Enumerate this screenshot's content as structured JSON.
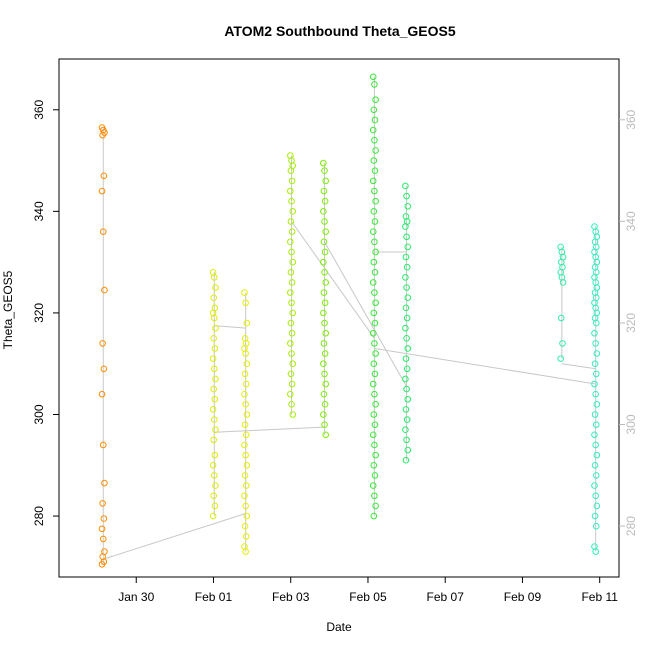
{
  "chart_data": {
    "type": "scatter",
    "title": "ATOM2 Southbound Theta_GEOS5",
    "xlabel": "Date",
    "ylabel": "Theta_GEOS5",
    "x_axis": "date",
    "xlim": [
      "2017-01-28T00:00",
      "2017-02-11T12:00"
    ],
    "ylim": [
      268,
      370
    ],
    "x_ticks": [
      {
        "value": "2017-01-30T00:00",
        "label": "Jan 30"
      },
      {
        "value": "2017-02-01T00:00",
        "label": "Feb 01"
      },
      {
        "value": "2017-02-03T00:00",
        "label": "Feb 03"
      },
      {
        "value": "2017-02-05T00:00",
        "label": "Feb 05"
      },
      {
        "value": "2017-02-07T00:00",
        "label": "Feb 07"
      },
      {
        "value": "2017-02-09T00:00",
        "label": "Feb 09"
      },
      {
        "value": "2017-02-11T00:00",
        "label": "Feb 11"
      }
    ],
    "y_ticks": [
      280,
      300,
      320,
      340,
      360
    ],
    "y_ticks_right": [
      280,
      300,
      320,
      340,
      360
    ],
    "grid": false,
    "connector_line_color": "#c8c8c8",
    "legend": "none",
    "note_profiles": "each profile is a vertical column of sampled theta values at nearly constant time",
    "profiles": [
      {
        "time": "2017-01-29T03:30",
        "color": "#FF8C00",
        "values": [
          356.5,
          356,
          355.5,
          355,
          347,
          344,
          336,
          324.5,
          314,
          309,
          304,
          294,
          286.5,
          282.5,
          279.5,
          277.5,
          275.5,
          273,
          272,
          271,
          270.5
        ]
      },
      {
        "time": "2017-02-01T00:30",
        "color": "#DDEE00",
        "values": [
          328,
          327,
          325,
          323,
          321,
          320,
          319,
          317,
          315,
          313,
          311,
          309,
          307,
          305,
          303,
          301,
          299,
          297,
          295,
          292,
          290,
          288,
          286,
          284,
          282,
          280
        ]
      },
      {
        "time": "2017-02-01T20:00",
        "color": "#E5F000",
        "values": [
          324,
          322,
          318,
          315,
          314,
          313,
          312,
          310,
          308,
          306,
          304,
          302,
          300,
          298,
          296,
          294,
          292,
          290,
          288,
          286,
          284,
          282,
          280,
          278,
          276,
          274,
          273
        ]
      },
      {
        "time": "2017-02-03T00:30",
        "color": "#A8F000",
        "values": [
          351,
          350,
          349,
          348,
          346,
          344,
          342,
          340,
          338,
          336,
          334,
          332,
          330,
          328,
          326,
          324,
          322,
          320,
          318,
          316,
          314,
          312,
          310,
          308,
          306,
          304,
          302,
          300
        ]
      },
      {
        "time": "2017-02-03T21:00",
        "color": "#7CF200",
        "values": [
          349.5,
          348,
          346,
          344,
          342,
          340,
          338,
          336,
          334,
          332,
          330,
          328,
          326,
          324,
          322,
          320,
          318,
          316,
          314,
          312,
          310,
          308,
          306,
          304,
          302,
          300,
          298,
          296
        ]
      },
      {
        "time": "2017-02-05T04:00",
        "color": "#33EE33",
        "values": [
          366.5,
          365,
          362,
          360,
          358,
          356,
          354,
          352,
          350,
          348,
          346,
          344,
          342,
          340,
          338,
          336,
          334,
          332,
          330,
          328,
          326,
          324,
          322,
          320,
          318,
          316,
          314,
          312,
          310,
          308,
          306,
          304,
          302,
          300,
          298,
          296,
          294,
          292,
          290,
          288,
          286,
          284,
          282,
          280
        ]
      },
      {
        "time": "2017-02-06T00:00",
        "color": "#22EE66",
        "values": [
          345,
          343,
          341,
          339,
          338,
          337,
          335,
          333,
          331,
          329,
          327,
          325,
          323,
          321,
          319,
          317,
          315,
          313,
          311,
          309,
          307,
          305,
          303,
          301,
          299,
          297,
          295,
          293,
          291
        ]
      },
      {
        "time": "2017-02-10T00:30",
        "color": "#33EEAA",
        "values": [
          333,
          332,
          331,
          330,
          329,
          328,
          327,
          326,
          319,
          314,
          311
        ]
      },
      {
        "time": "2017-02-10T21:30",
        "color": "#2EF0C0",
        "values": [
          337,
          336,
          335,
          334,
          333,
          332,
          331,
          330,
          329,
          328,
          327,
          326,
          325,
          324,
          323,
          322,
          321,
          320,
          319,
          318,
          316,
          314,
          312,
          310,
          308,
          306,
          304,
          302,
          300,
          298,
          296,
          294,
          292,
          290,
          288,
          286,
          284,
          282,
          280,
          278,
          274,
          273
        ]
      }
    ],
    "connections": [
      {
        "from": [
          "2017-01-29T03:30",
          271.5
        ],
        "to": [
          "2017-02-01T20:00",
          280.5
        ]
      },
      {
        "from": [
          "2017-02-01T00:30",
          296.5
        ],
        "to": [
          "2017-02-03T21:00",
          297.5
        ]
      },
      {
        "from": [
          "2017-02-01T00:30",
          317.5
        ],
        "to": [
          "2017-02-01T20:00",
          317
        ]
      },
      {
        "from": [
          "2017-02-03T00:30",
          338
        ],
        "to": [
          "2017-02-05T04:00",
          315
        ]
      },
      {
        "from": [
          "2017-02-03T21:00",
          303.5
        ],
        "to": [
          "2017-02-03T21:00",
          303.5
        ]
      },
      {
        "from": [
          "2017-02-03T21:00",
          334
        ],
        "to": [
          "2017-02-06T00:00",
          305.5
        ]
      },
      {
        "from": [
          "2017-02-05T04:00",
          332
        ],
        "to": [
          "2017-02-06T00:00",
          332
        ]
      },
      {
        "from": [
          "2017-02-05T04:00",
          313
        ],
        "to": [
          "2017-02-10T21:30",
          306
        ]
      },
      {
        "from": [
          "2017-02-10T00:30",
          310
        ],
        "to": [
          "2017-02-10T21:30",
          309
        ]
      }
    ]
  }
}
